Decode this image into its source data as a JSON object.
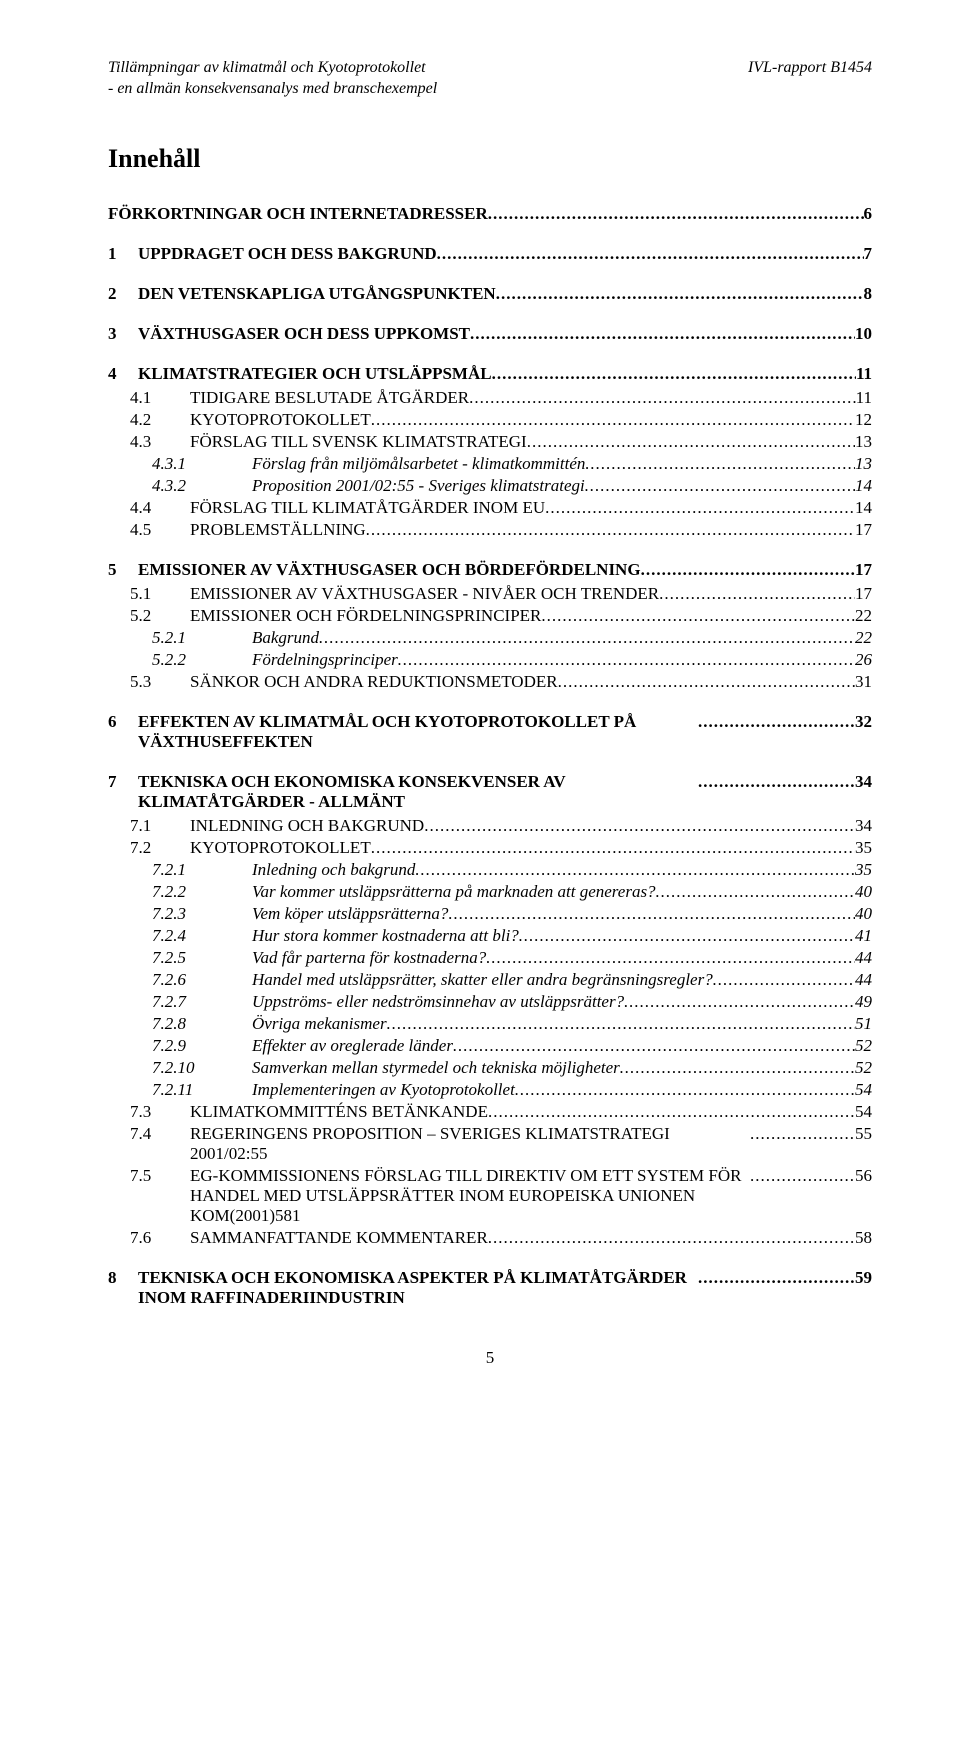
{
  "header": {
    "title_line1": "Tillämpningar av klimatmål och Kyotoprotokollet",
    "title_line2": "- en allmän konsekvensanalys med branschexempel",
    "report": "IVL-rapport  B1454"
  },
  "toc_heading": "Innehåll",
  "entries": [
    {
      "level": 0,
      "num": "",
      "label": "FÖRKORTNINGAR OCH INTERNETADRESSER",
      "page": "6",
      "no_num": true
    },
    {
      "level": 0,
      "num": "1",
      "label": "UPPDRAGET OCH DESS BAKGRUND",
      "page": "7"
    },
    {
      "level": 0,
      "num": "2",
      "label": "DEN VETENSKAPLIGA UTGÅNGSPUNKTEN",
      "page": "8"
    },
    {
      "level": 0,
      "num": "3",
      "label": "VÄXTHUSGASER OCH DESS UPPKOMST",
      "page": "10"
    },
    {
      "level": 0,
      "num": "4",
      "label": "KLIMATSTRATEGIER OCH UTSLÄPPSMÅL",
      "page": "11"
    },
    {
      "level": 1,
      "num": "4.1",
      "label": "TIDIGARE BESLUTADE ÅTGÄRDER",
      "page": "11",
      "sc": true
    },
    {
      "level": 1,
      "num": "4.2",
      "label": "KYOTOPROTOKOLLET",
      "page": "12",
      "sc": true
    },
    {
      "level": 1,
      "num": "4.3",
      "label": "FÖRSLAG TILL SVENSK KLIMATSTRATEGI",
      "page": "13",
      "sc": true
    },
    {
      "level": 2,
      "num": "4.3.1",
      "label": "Förslag från miljömålsarbetet - klimatkommittén",
      "page": "13"
    },
    {
      "level": 2,
      "num": "4.3.2",
      "label": "Proposition 2001/02:55 - Sveriges klimatstrategi",
      "page": "14"
    },
    {
      "level": 1,
      "num": "4.4",
      "label": "FÖRSLAG TILL KLIMATÅTGÄRDER INOM EU",
      "page": "14",
      "sc": true
    },
    {
      "level": 1,
      "num": "4.5",
      "label": "PROBLEMSTÄLLNING",
      "page": "17",
      "sc": true
    },
    {
      "level": 0,
      "num": "5",
      "label": "EMISSIONER AV VÄXTHUSGASER OCH BÖRDEFÖRDELNING",
      "page": "17"
    },
    {
      "level": 1,
      "num": "5.1",
      "label": "EMISSIONER AV VÄXTHUSGASER - NIVÅER OCH TRENDER",
      "page": "17",
      "sc": true
    },
    {
      "level": 1,
      "num": "5.2",
      "label": "EMISSIONER OCH FÖRDELNINGSPRINCIPER",
      "page": "22",
      "sc": true
    },
    {
      "level": 2,
      "num": "5.2.1",
      "label": "Bakgrund",
      "page": "22"
    },
    {
      "level": 2,
      "num": "5.2.2",
      "label": "Fördelningsprinciper",
      "page": "26"
    },
    {
      "level": 1,
      "num": "5.3",
      "label": "SÄNKOR OCH ANDRA REDUKTIONSMETODER",
      "page": "31",
      "sc": true
    },
    {
      "level": 0,
      "num": "6",
      "label": "EFFEKTEN AV KLIMATMÅL OCH KYOTOPROTOKOLLET PÅ VÄXTHUSEFFEKTEN",
      "page": "32"
    },
    {
      "level": 0,
      "num": "7",
      "label": "TEKNISKA OCH EKONOMISKA KONSEKVENSER AV KLIMATÅTGÄRDER - ALLMÄNT",
      "page": "34"
    },
    {
      "level": 1,
      "num": "7.1",
      "label": "INLEDNING OCH BAKGRUND",
      "page": "34",
      "sc": true
    },
    {
      "level": 1,
      "num": "7.2",
      "label": "KYOTOPROTOKOLLET",
      "page": "35",
      "sc": true
    },
    {
      "level": 2,
      "num": "7.2.1",
      "label": "Inledning och bakgrund",
      "page": "35"
    },
    {
      "level": 2,
      "num": "7.2.2",
      "label": "Var kommer utsläppsrätterna på marknaden att genereras?",
      "page": "40"
    },
    {
      "level": 2,
      "num": "7.2.3",
      "label": "Vem köper utsläppsrätterna?",
      "page": "40"
    },
    {
      "level": 2,
      "num": "7.2.4",
      "label": "Hur stora kommer kostnaderna att bli?",
      "page": "41"
    },
    {
      "level": 2,
      "num": "7.2.5",
      "label": "Vad får parterna för kostnaderna?",
      "page": "44"
    },
    {
      "level": 2,
      "num": "7.2.6",
      "label": "Handel med utsläppsrätter, skatter eller andra begränsningsregler?",
      "page": "44"
    },
    {
      "level": 2,
      "num": "7.2.7",
      "label": "Uppströms- eller nedströmsinnehav av utsläppsrätter?",
      "page": "49"
    },
    {
      "level": 2,
      "num": "7.2.8",
      "label": "Övriga mekanismer",
      "page": "51"
    },
    {
      "level": 2,
      "num": "7.2.9",
      "label": "Effekter av oreglerade länder",
      "page": "52"
    },
    {
      "level": 2,
      "num": "7.2.10",
      "label": "Samverkan mellan styrmedel och tekniska möjligheter",
      "page": "52"
    },
    {
      "level": 2,
      "num": "7.2.11",
      "label": "Implementeringen av Kyotoprotokollet",
      "page": "54"
    },
    {
      "level": 1,
      "num": "7.3",
      "label": "KLIMATKOMMITTÉNS BETÄNKANDE",
      "page": "54",
      "sc": true
    },
    {
      "level": 1,
      "num": "7.4",
      "label": "REGERINGENS PROPOSITION – SVERIGES KLIMATSTRATEGI 2001/02:55",
      "page": "55",
      "sc": true
    },
    {
      "level": 1,
      "num": "7.5",
      "label": "EG-KOMMISSIONENS FÖRSLAG TILL DIREKTIV OM ETT SYSTEM FÖR HANDEL MED UTSLÄPPSRÄTTER INOM EUROPEISKA UNIONEN KOM(2001)581",
      "page": "56",
      "sc": true
    },
    {
      "level": 1,
      "num": "7.6",
      "label": "SAMMANFATTANDE KOMMENTARER",
      "page": "58",
      "sc": true
    },
    {
      "level": 0,
      "num": "8",
      "label": "TEKNISKA OCH EKONOMISKA ASPEKTER PÅ KLIMATÅTGÄRDER INOM RAFFINADERIINDUSTRIN",
      "page": "59"
    }
  ],
  "footer_page": "5"
}
